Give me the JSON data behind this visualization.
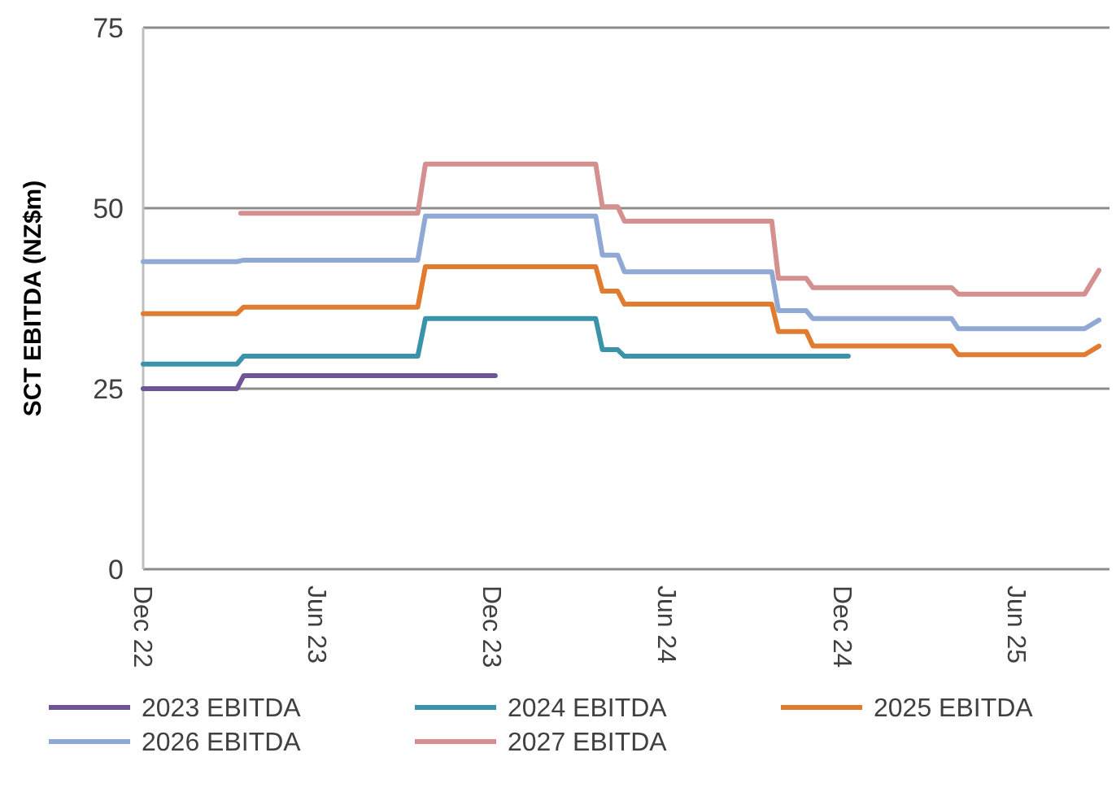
{
  "chart_data": {
    "type": "line",
    "ylabel": "SCT EBITDA (NZ$m)",
    "ylim": [
      0,
      75
    ],
    "yticks": [
      0,
      25,
      50,
      75
    ],
    "xlim": [
      "2022-12-01",
      "2025-09-06"
    ],
    "xticks": [
      {
        "value": "2022-12-01",
        "label": "Dec 22"
      },
      {
        "value": "2023-06-01",
        "label": "Jun 23"
      },
      {
        "value": "2023-12-01",
        "label": "Dec 23"
      },
      {
        "value": "2024-06-01",
        "label": "Jun 24"
      },
      {
        "value": "2024-12-01",
        "label": "Dec 24"
      },
      {
        "value": "2025-06-01",
        "label": "Jun 25"
      }
    ],
    "grid": "y",
    "legend": "bottom",
    "marker": "none",
    "line_style": "solid",
    "series": [
      {
        "name": "2023 EBITDA",
        "color": "#6f5597",
        "x": [
          "2022-12-01",
          "2023-03-09",
          "2023-03-16",
          "2023-12-04"
        ],
        "values": [
          25.0,
          25.0,
          26.8,
          26.8
        ]
      },
      {
        "name": "2024 EBITDA",
        "color": "#3a93a8",
        "x": [
          "2022-12-01",
          "2023-03-09",
          "2023-03-16",
          "2023-09-14",
          "2023-09-22",
          "2024-03-18",
          "2024-03-25",
          "2024-04-10",
          "2024-04-17",
          "2024-12-07"
        ],
        "values": [
          28.4,
          28.4,
          29.5,
          29.5,
          34.7,
          34.7,
          30.4,
          30.4,
          29.5,
          29.5
        ]
      },
      {
        "name": "2025 EBITDA",
        "color": "#e07b2f",
        "x": [
          "2022-12-01",
          "2023-03-09",
          "2023-03-16",
          "2023-09-14",
          "2023-09-22",
          "2024-03-18",
          "2024-03-25",
          "2024-04-10",
          "2024-04-17",
          "2024-09-18",
          "2024-09-25",
          "2024-10-24",
          "2024-10-31",
          "2025-03-25",
          "2025-04-01",
          "2025-08-11",
          "2025-08-26"
        ],
        "values": [
          35.4,
          35.4,
          36.3,
          36.3,
          41.9,
          41.9,
          38.5,
          38.5,
          36.7,
          36.7,
          32.9,
          32.9,
          30.9,
          30.9,
          29.7,
          29.7,
          30.9
        ]
      },
      {
        "name": "2026 EBITDA",
        "color": "#8fa8d4",
        "x": [
          "2022-12-01",
          "2023-03-09",
          "2023-03-16",
          "2023-09-14",
          "2023-09-22",
          "2024-03-18",
          "2024-03-25",
          "2024-04-10",
          "2024-04-17",
          "2024-09-18",
          "2024-09-25",
          "2024-10-24",
          "2024-10-31",
          "2025-03-25",
          "2025-04-01",
          "2025-08-11",
          "2025-08-26"
        ],
        "values": [
          42.6,
          42.6,
          42.8,
          42.8,
          48.9,
          48.9,
          43.5,
          43.5,
          41.2,
          41.2,
          35.8,
          35.8,
          34.7,
          34.7,
          33.3,
          33.3,
          34.5
        ]
      },
      {
        "name": "2027 EBITDA",
        "color": "#d48f8f",
        "x": [
          "2023-03-13",
          "2023-09-14",
          "2023-09-22",
          "2024-03-18",
          "2024-03-25",
          "2024-04-10",
          "2024-04-17",
          "2024-09-18",
          "2024-09-25",
          "2024-10-24",
          "2024-10-31",
          "2025-03-25",
          "2025-04-01",
          "2025-08-11",
          "2025-08-26"
        ],
        "values": [
          49.3,
          49.3,
          56.1,
          56.1,
          50.2,
          50.2,
          48.2,
          48.2,
          40.3,
          40.3,
          39.0,
          39.0,
          38.1,
          38.1,
          41.4
        ]
      }
    ]
  }
}
